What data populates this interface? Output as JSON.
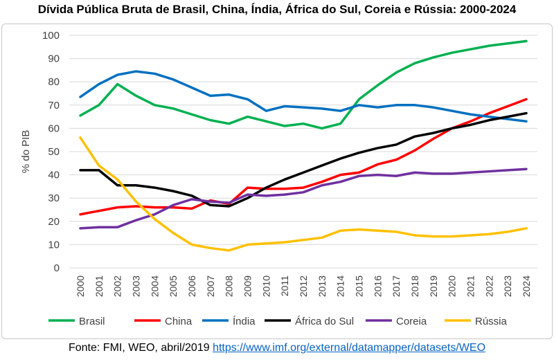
{
  "chart_data": {
    "type": "line",
    "title": "Dívida Pública Bruta de Brasil, China, Índia, África do Sul, Coreia e Rússia: 2000-2024",
    "xlabel": "",
    "ylabel": "% do PIB",
    "ylim": [
      0,
      100
    ],
    "yticks": [
      0,
      10,
      20,
      30,
      40,
      50,
      60,
      70,
      80,
      90,
      100
    ],
    "grid": true,
    "legend": "bottom",
    "x": [
      "2000",
      "2001",
      "2002",
      "2003",
      "2004",
      "2005",
      "2006",
      "2007",
      "2008",
      "2009",
      "2010",
      "2011",
      "2012",
      "2013",
      "2014",
      "2015",
      "2016",
      "2017",
      "2018",
      "2019",
      "2020",
      "2021",
      "2022",
      "2023",
      "2024"
    ],
    "series": [
      {
        "name": "Brasil",
        "color": "#00b050",
        "values": [
          65.5,
          70,
          79,
          74,
          70,
          68.5,
          66,
          63.5,
          62,
          65,
          63,
          61,
          62,
          60,
          62,
          72.5,
          78.5,
          84,
          88,
          90.5,
          92.5,
          94,
          95.5,
          96.5,
          97.5
        ]
      },
      {
        "name": "China",
        "color": "#ff0000",
        "values": [
          23,
          24.5,
          26,
          26.5,
          26,
          26,
          25.5,
          29,
          27.5,
          34.5,
          34,
          34,
          34.5,
          37,
          40,
          41,
          44.5,
          46.5,
          50.5,
          55.5,
          60,
          63,
          66.5,
          69.5,
          72.5
        ]
      },
      {
        "name": "Índia",
        "color": "#0070c0",
        "values": [
          73.5,
          79,
          83,
          84.5,
          83.5,
          81,
          77.5,
          74,
          74.5,
          72.5,
          67.5,
          69.5,
          69,
          68.5,
          67.5,
          70,
          69,
          70,
          70,
          69,
          67.5,
          66,
          65,
          64,
          63
        ]
      },
      {
        "name": "África do Sul",
        "color": "#000000",
        "values": [
          42,
          42,
          35.5,
          35.5,
          34.5,
          33,
          31,
          27,
          26.5,
          30,
          34.5,
          38,
          41,
          44,
          47,
          49.5,
          51.5,
          53,
          56.5,
          58,
          60,
          61.5,
          63.5,
          65,
          66.5
        ]
      },
      {
        "name": "Coreia",
        "color": "#7030a0",
        "values": [
          17,
          17.5,
          17.5,
          20.5,
          23,
          27,
          29.5,
          28.5,
          28,
          31.5,
          31,
          31.5,
          32.5,
          35.5,
          37,
          39.5,
          40,
          39.5,
          41,
          40.5,
          40.5,
          41,
          41.5,
          42,
          42.5
        ]
      },
      {
        "name": "Rússia",
        "color": "#ffc000",
        "values": [
          56,
          44,
          38,
          28.5,
          21,
          15,
          10,
          8.5,
          7.5,
          10,
          10.5,
          11,
          12,
          13,
          16,
          16.5,
          16,
          15.5,
          14,
          13.5,
          13.5,
          14,
          14.5,
          15.5,
          17
        ]
      }
    ]
  },
  "footer": {
    "source": "Fonte: FMI, WEO, abril/2019 ",
    "link": "https://www.imf.org/external/datamapper/datasets/WEO"
  }
}
